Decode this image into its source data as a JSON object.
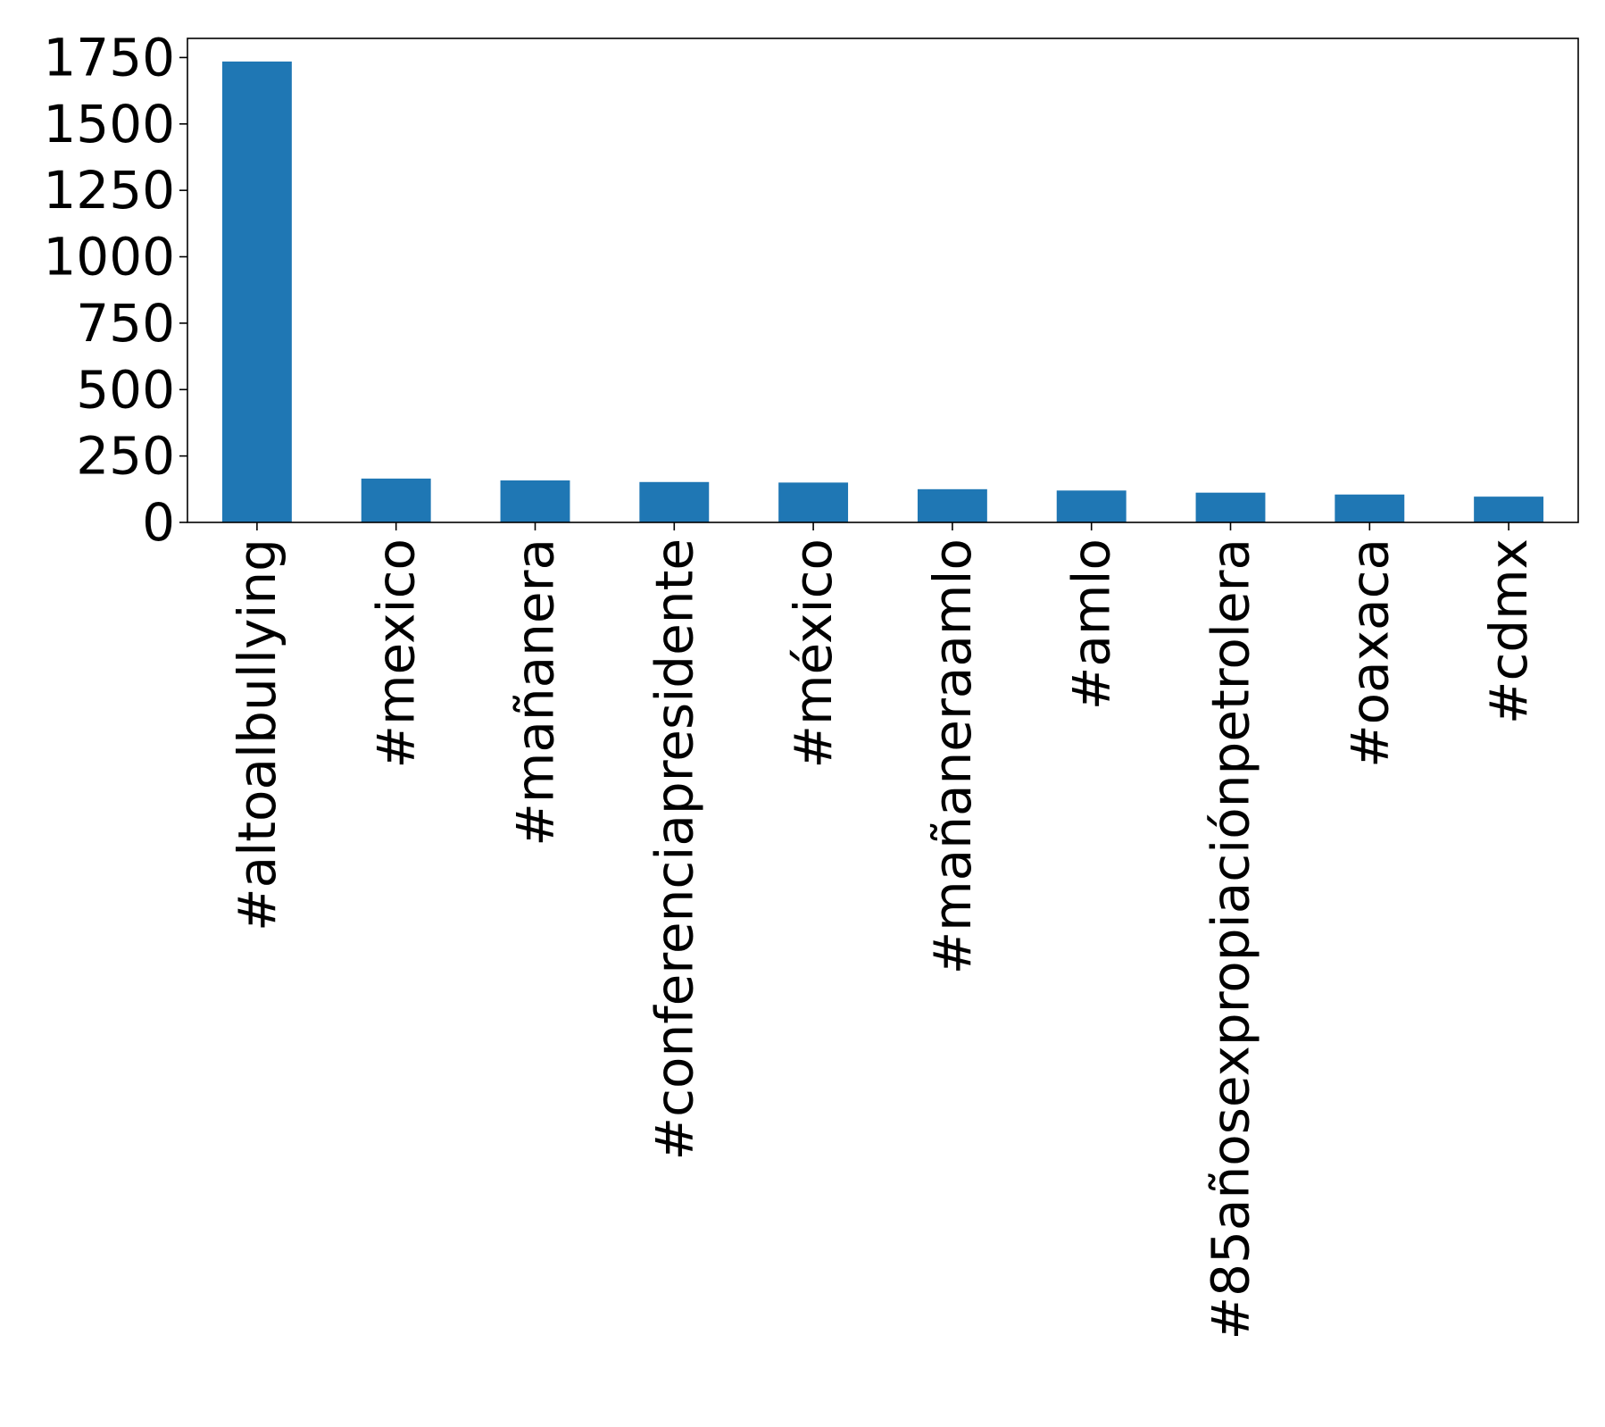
{
  "chart_data": {
    "type": "bar",
    "title": "",
    "xlabel": "",
    "ylabel": "",
    "categories": [
      "#altoalbullying",
      "#mexico",
      "#mañanera",
      "#conferenciapresidente",
      "#méxico",
      "#mañaneraamlo",
      "#amlo",
      "#85añosexpropiaciónpetrolera",
      "#oaxaca",
      "#cdmx"
    ],
    "values": [
      1735,
      165,
      158,
      152,
      150,
      125,
      120,
      112,
      105,
      97
    ],
    "ylim": [
      0,
      1822
    ],
    "yticks": [
      0,
      250,
      500,
      750,
      1000,
      1250,
      1500,
      1750
    ],
    "ytick_labels": [
      "0",
      "250",
      "500",
      "750",
      "1000",
      "1250",
      "1500",
      "1750"
    ],
    "bar_color": "#1f77b4",
    "grid": false,
    "legend": "none"
  }
}
